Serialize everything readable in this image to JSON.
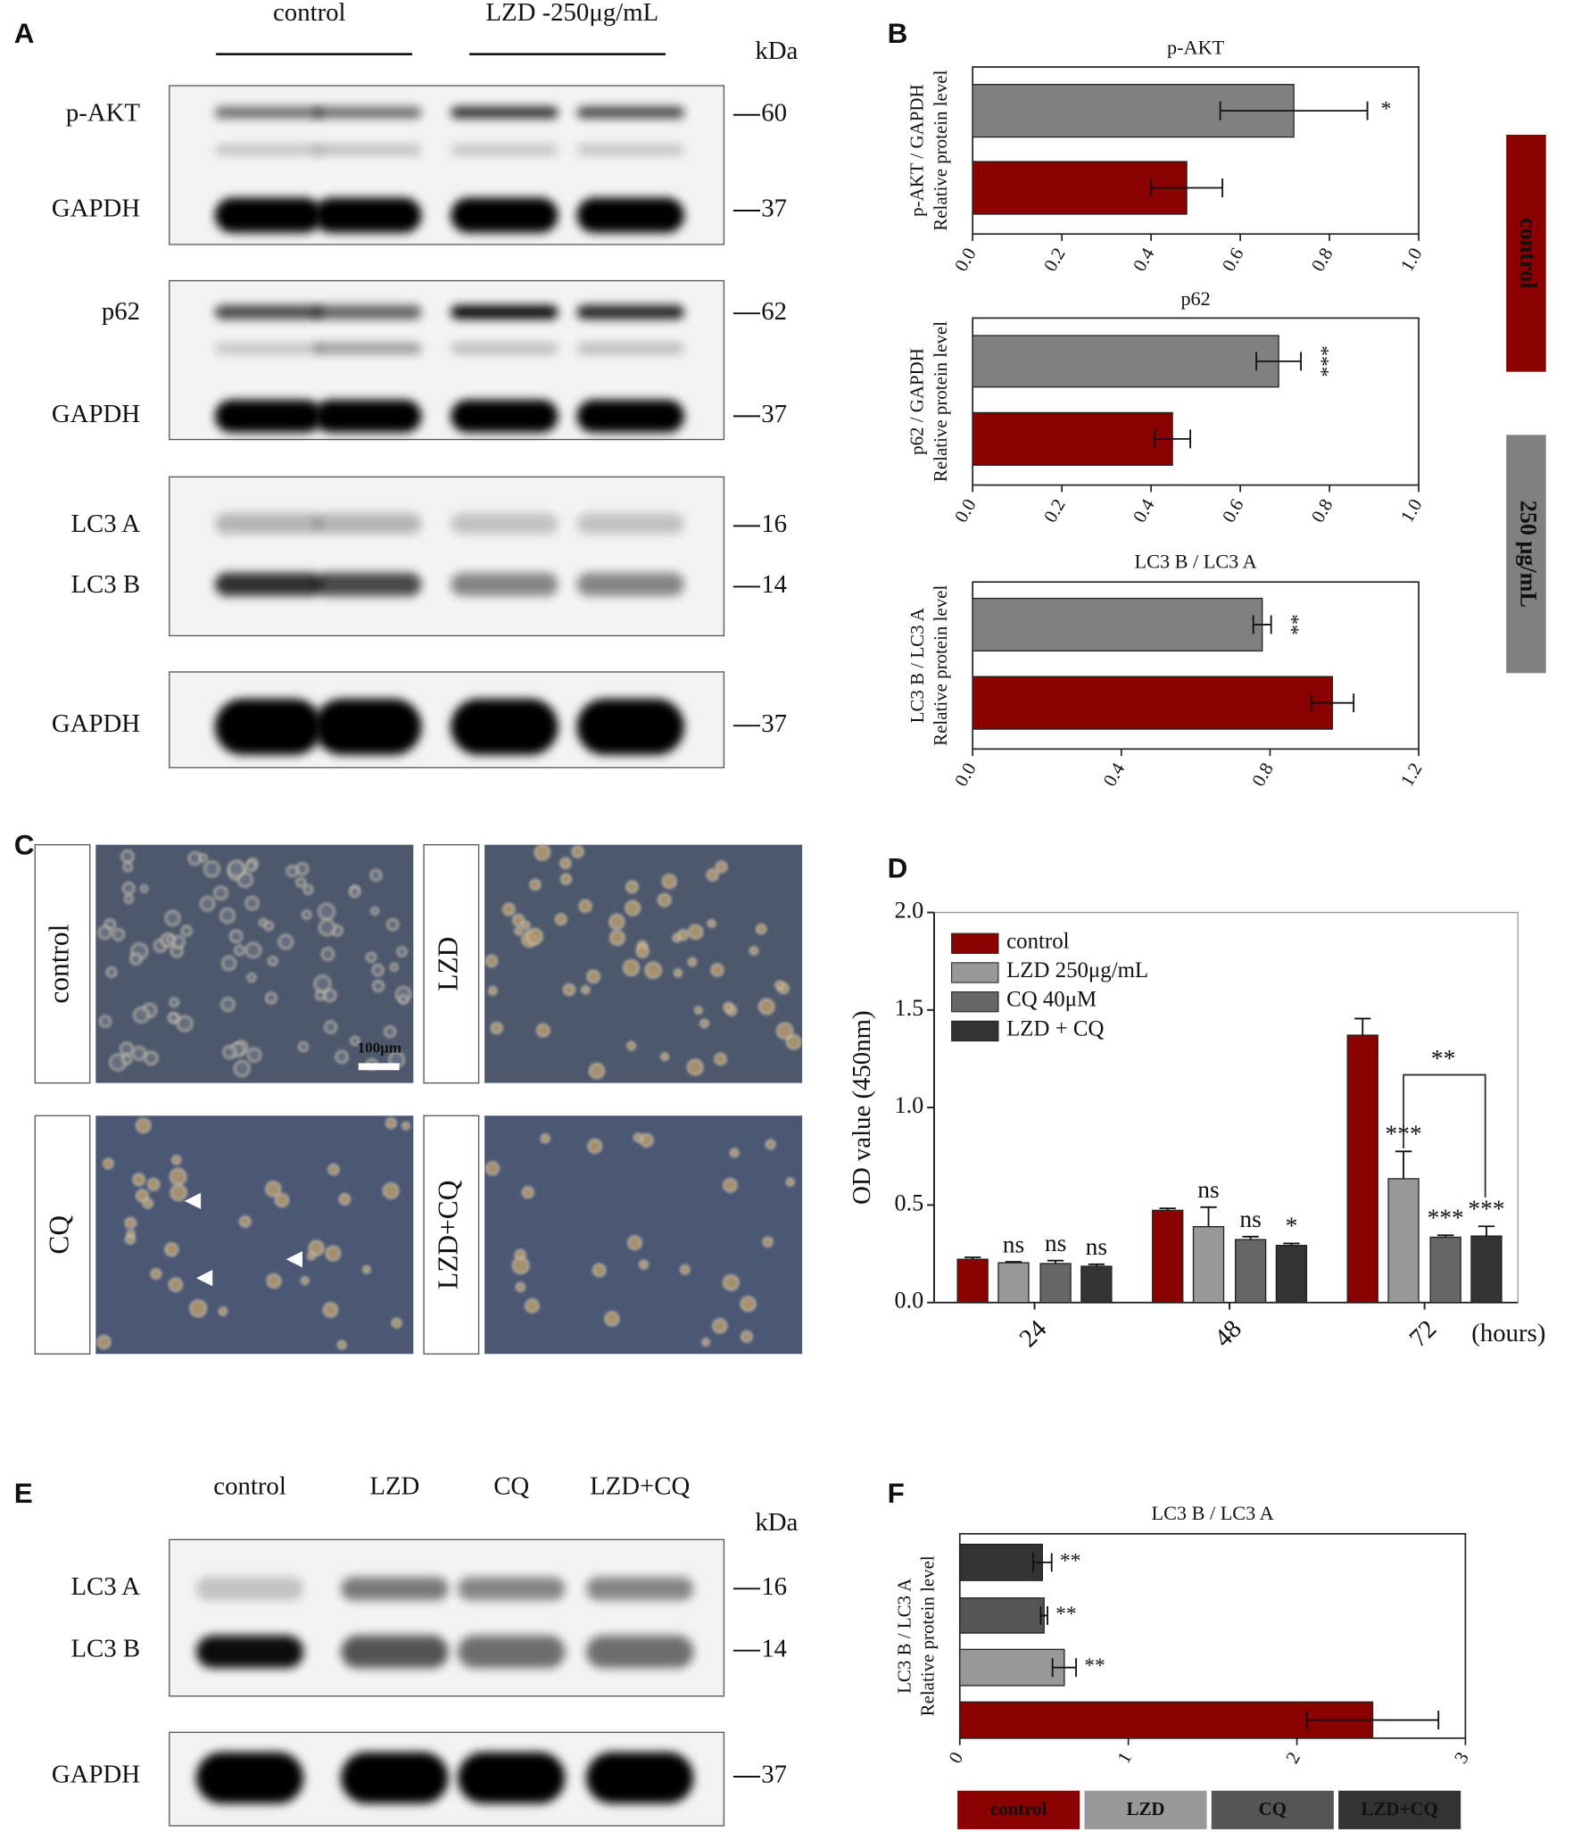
{
  "panel_labels": [
    "A",
    "B",
    "C",
    "D",
    "E",
    "F"
  ],
  "blot_a": {
    "header": [
      "control",
      "LZD -250μg/mL"
    ],
    "unit": "kDa",
    "rows": [
      {
        "label": "p-AKT",
        "kda": "60"
      },
      {
        "label": "GAPDH",
        "kda": "37"
      },
      {
        "label": "p62",
        "kda": "62"
      },
      {
        "label": "GAPDH",
        "kda": "37"
      },
      {
        "label": "LC3 A",
        "kda": "16"
      },
      {
        "label": "LC3 B",
        "kda": "14"
      },
      {
        "label": "GAPDH",
        "kda": "37"
      }
    ]
  },
  "panel_b_legend": [
    {
      "label": "control",
      "color": "#8b0000"
    },
    {
      "label": "250 μg/mL",
      "color": "#808080"
    }
  ],
  "micrographs": {
    "labels": [
      "control",
      "LZD",
      "CQ",
      "LZD+CQ"
    ],
    "scale_bar": "100μm"
  },
  "blot_e": {
    "lanes": [
      "control",
      "LZD",
      "CQ",
      "LZD+CQ"
    ],
    "unit": "kDa",
    "rows": [
      {
        "label": "LC3 A",
        "kda": "16"
      },
      {
        "label": "LC3 B",
        "kda": "14"
      },
      {
        "label": "GAPDH",
        "kda": "37"
      }
    ]
  },
  "chart_data": [
    {
      "type": "hbar",
      "title": "p-AKT",
      "ylabel": [
        "p-AKT / GAPDH",
        "Relative protein level"
      ],
      "values": [
        0.72,
        0.48
      ],
      "errors": [
        0.165,
        0.08
      ],
      "colors": [
        "#808080",
        "#8b0000"
      ],
      "significance": [
        "*",
        null
      ],
      "xlim": [
        0,
        1
      ],
      "xticks": [
        {
          "value": 0,
          "label": "0.0"
        },
        0.2,
        0.4,
        0.6,
        0.8,
        {
          "value": 1,
          "label": "1.0"
        }
      ]
    },
    {
      "type": "hbar",
      "title": "p62",
      "ylabel": [
        "p62 / GAPDH",
        "Relative protein level"
      ],
      "values": [
        0.686,
        0.448
      ],
      "errors": [
        0.05,
        0.04
      ],
      "colors": [
        "#808080",
        "#8b0000"
      ],
      "significance": [
        "***",
        null
      ],
      "xlim": [
        0,
        1
      ],
      "xticks": [
        {
          "value": 0,
          "label": "0.0"
        },
        0.2,
        0.4,
        0.6,
        0.8,
        {
          "value": 1,
          "label": "1.0"
        }
      ]
    },
    {
      "type": "hbar",
      "title": "LC3 B / LC3 A",
      "ylabel": [
        "LC3 B / LC3 A",
        "Relative protein level"
      ],
      "values": [
        0.779,
        0.968
      ],
      "errors": [
        0.024,
        0.057
      ],
      "colors": [
        "#808080",
        "#8b0000"
      ],
      "significance": [
        "**",
        null
      ],
      "xlim": [
        0,
        1.2
      ],
      "xticks": [
        {
          "value": 0,
          "label": "0.0"
        },
        0.4,
        0.8,
        1.2
      ]
    },
    {
      "type": "bar",
      "ylabel": "OD value (450nm)",
      "xlabel": "(hours)",
      "categories": [
        "24",
        "48",
        "72"
      ],
      "series": [
        {
          "name": "control",
          "color": "#8b0000",
          "values": [
            0.222,
            0.473,
            1.371
          ],
          "errors": [
            0.01,
            0.01,
            0.085
          ],
          "significance": [
            null,
            null,
            null
          ]
        },
        {
          "name": "LZD 250μg/mL",
          "color": "#999999",
          "values": [
            0.204,
            0.389,
            0.635
          ],
          "errors": [
            0.005,
            0.1,
            0.14
          ],
          "significance": [
            "ns",
            "ns",
            "***"
          ]
        },
        {
          "name": "CQ 40μM",
          "color": "#666666",
          "values": [
            0.2,
            0.323,
            0.335
          ],
          "errors": [
            0.015,
            0.015,
            0.01
          ],
          "significance": [
            "ns",
            "ns",
            "***"
          ]
        },
        {
          "name": "LZD + CQ",
          "color": "#333333",
          "values": [
            0.186,
            0.293,
            0.341
          ],
          "errors": [
            0.01,
            0.01,
            0.05
          ],
          "significance": [
            "ns",
            "*",
            "***"
          ]
        }
      ],
      "bracket_label": "**",
      "ylim": [
        0,
        2
      ],
      "yticks": [
        {
          "value": 0,
          "label": "0.0"
        },
        0.5,
        {
          "value": 1,
          "label": "1.0"
        },
        1.5,
        {
          "value": 2,
          "label": "2.0"
        }
      ]
    },
    {
      "type": "hbar",
      "title": "LC3 B / LC3 A",
      "ylabel": [
        "LC3 B / LC3 A",
        "Relative protein level"
      ],
      "categories": [
        "control",
        "LZD",
        "CQ",
        "LZD+CQ"
      ],
      "values": [
        2.45,
        0.62,
        0.5,
        0.49
      ],
      "errors": [
        0.39,
        0.07,
        0.02,
        0.055
      ],
      "colors": [
        "#8b0000",
        "#999999",
        "#555555",
        "#333333"
      ],
      "significance": [
        null,
        "**",
        "**",
        "**"
      ],
      "xlim": [
        0,
        3
      ],
      "xticks": [
        0,
        1,
        2,
        3
      ]
    }
  ]
}
